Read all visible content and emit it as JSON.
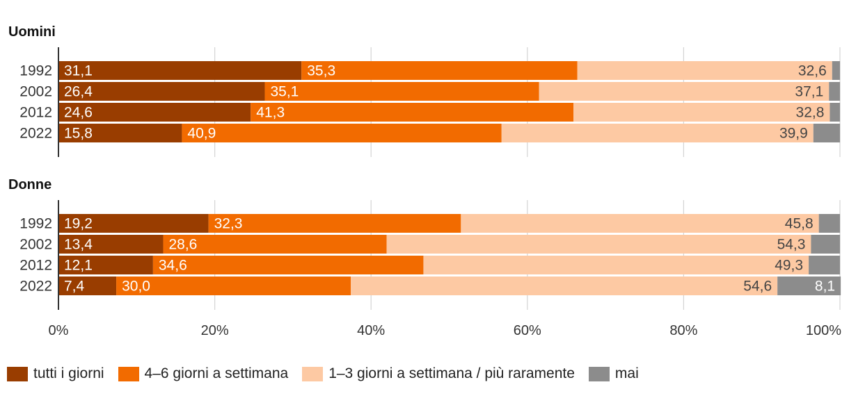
{
  "chart_data": {
    "type": "bar",
    "orientation": "horizontal",
    "stacked": true,
    "xlim": [
      0,
      100
    ],
    "xticks": [
      "0%",
      "20%",
      "40%",
      "60%",
      "80%",
      "100%"
    ],
    "grid": true,
    "legend_position": "bottom",
    "series": [
      {
        "name": "tutti i giorni",
        "color": "#993d00"
      },
      {
        "name": "4–6 giorni a settimana",
        "color": "#f26b00"
      },
      {
        "name": "1–3 giorni a settimana / più raramente",
        "color": "#fdc9a3"
      },
      {
        "name": "mai",
        "color": "#8c8c8c"
      }
    ],
    "panels": [
      {
        "title": "Uomini",
        "categories": [
          "1992",
          "2002",
          "2012",
          "2022"
        ],
        "values": [
          [
            31.1,
            35.3,
            32.6,
            1.0
          ],
          [
            26.4,
            35.1,
            37.1,
            1.4
          ],
          [
            24.6,
            41.3,
            32.8,
            1.3
          ],
          [
            15.8,
            40.9,
            39.9,
            3.4
          ]
        ],
        "labels": [
          [
            "31,1",
            "35,3",
            "32,6",
            ""
          ],
          [
            "26,4",
            "35,1",
            "37,1",
            ""
          ],
          [
            "24,6",
            "41,3",
            "32,8",
            ""
          ],
          [
            "15,8",
            "40,9",
            "39,9",
            ""
          ]
        ]
      },
      {
        "title": "Donne",
        "categories": [
          "1992",
          "2002",
          "2012",
          "2022"
        ],
        "values": [
          [
            19.2,
            32.3,
            45.8,
            2.7
          ],
          [
            13.4,
            28.6,
            54.3,
            3.7
          ],
          [
            12.1,
            34.6,
            49.3,
            4.0
          ],
          [
            7.4,
            30.0,
            54.6,
            8.1
          ]
        ],
        "labels": [
          [
            "19,2",
            "32,3",
            "45,8",
            ""
          ],
          [
            "13,4",
            "28,6",
            "54,3",
            ""
          ],
          [
            "12,1",
            "34,6",
            "49,3",
            ""
          ],
          [
            "7,4",
            "30,0",
            "54,6",
            "8,1"
          ]
        ]
      }
    ]
  }
}
